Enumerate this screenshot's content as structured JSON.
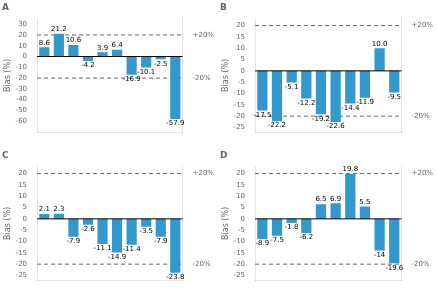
{
  "chart_data": [
    {
      "type": "bar",
      "title": "A",
      "ylabel": "Bias (%)",
      "categories": [
        null,
        null,
        null,
        null,
        null,
        null,
        null,
        null,
        null,
        null
      ],
      "values": [
        8.6,
        21.2,
        10.6,
        -4.2,
        3.9,
        6.4,
        -16.9,
        -10.1,
        -2.5,
        -57.9
      ],
      "color": "#3399cc",
      "ylim": [
        -70,
        35
      ],
      "yticks": [
        -60,
        -50,
        -40,
        -30,
        -20,
        -10,
        0,
        10,
        20,
        30
      ],
      "y2lim": [
        -70,
        35
      ],
      "y2ticks": [
        {
          "value": 20,
          "label": "+20%"
        },
        {
          "value": -20,
          "label": "-20%"
        }
      ],
      "grid": false,
      "data_labels": true,
      "tick_labels": "y"
    },
    {
      "type": "bar",
      "title": "B",
      "ylabel": "Bias (%)",
      "categories": [
        null,
        null,
        null,
        null,
        null,
        null,
        null,
        null,
        null,
        null
      ],
      "values": [
        -17.5,
        -22.2,
        -5.1,
        -12.2,
        -19.2,
        -22.6,
        -14.4,
        -11.9,
        10.0,
        -9.5
      ],
      "value_labels": [
        "-17.5",
        "-22.2",
        "-5.1",
        "-12.2",
        "-19.2",
        "-22.6",
        "-14.4",
        "-11.9",
        "10.0",
        "-9.5"
      ],
      "color": "#3399cc",
      "ylim": [
        -27,
        23
      ],
      "yticks": [
        -25,
        -20,
        -15,
        -10,
        -5,
        0,
        5,
        10,
        15,
        20
      ],
      "y2lim": [
        -27,
        23
      ],
      "y2ticks": [
        {
          "value": 20,
          "label": "+20%"
        },
        {
          "value": -20,
          "label": "-20%"
        }
      ],
      "grid": false,
      "data_labels": true,
      "tick_labels": "y"
    },
    {
      "type": "bar",
      "title": "C",
      "ylabel": "Bias (%)",
      "categories": [
        null,
        null,
        null,
        null,
        null,
        null,
        null,
        null,
        null,
        null
      ],
      "values": [
        2.1,
        2.3,
        -7.9,
        -2.6,
        -11.1,
        -14.9,
        -11.4,
        -3.5,
        -7.9,
        -23.8
      ],
      "color": "#3399cc",
      "ylim": [
        -27,
        23
      ],
      "yticks": [
        -25,
        -20,
        -15,
        -10,
        -5,
        0,
        5,
        10,
        15,
        20
      ],
      "y2lim": [
        -27,
        23
      ],
      "y2ticks": [
        {
          "value": 20,
          "label": "+20%"
        },
        {
          "value": -20,
          "label": "-20%"
        }
      ],
      "grid": false,
      "data_labels": true,
      "tick_labels": "y"
    },
    {
      "type": "bar",
      "title": "D",
      "ylabel": "Bias (%)",
      "categories": [
        null,
        null,
        null,
        null,
        null,
        null,
        null,
        null,
        null,
        null
      ],
      "values": [
        -8.9,
        -7.5,
        -1.8,
        -6.2,
        6.5,
        6.9,
        19.8,
        5.5,
        -14.0,
        -19.6
      ],
      "color": "#3399cc",
      "ylim": [
        -27,
        23
      ],
      "yticks": [
        -25,
        -20,
        -15,
        -10,
        -5,
        0,
        5,
        10,
        15,
        20
      ],
      "y2lim": [
        -27,
        23
      ],
      "y2ticks": [
        {
          "value": 20,
          "label": "+20%"
        },
        {
          "value": -20,
          "label": "-20%"
        }
      ],
      "grid": false,
      "data_labels": true,
      "tick_labels": "y"
    }
  ]
}
